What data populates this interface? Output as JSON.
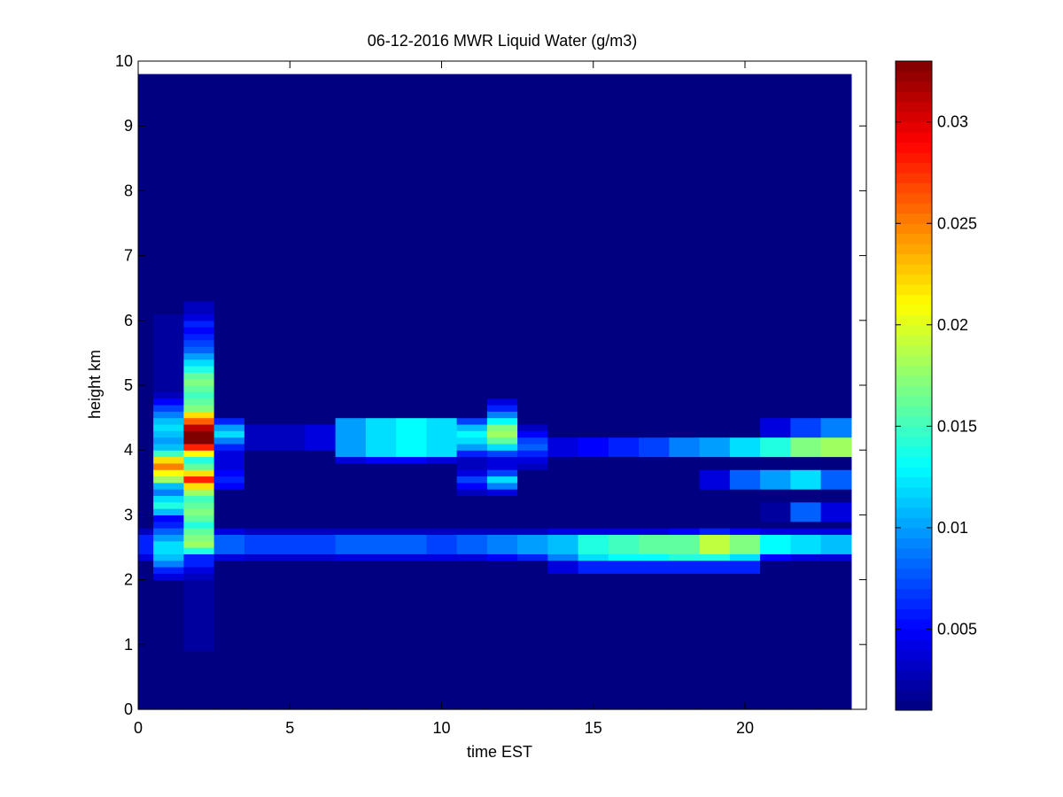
{
  "chart_data": {
    "type": "heatmap",
    "title": "06-12-2016 MWR Liquid Water (g/m3)",
    "xlabel": "time EST",
    "ylabel": "height km",
    "xlim": [
      0,
      24
    ],
    "ylim": [
      0,
      10
    ],
    "x_ticks": [
      0,
      5,
      10,
      15,
      20
    ],
    "y_ticks": [
      0,
      1,
      2,
      3,
      4,
      5,
      6,
      7,
      8,
      9,
      10
    ],
    "colorbar": {
      "colormap": "jet",
      "range": [
        0.001,
        0.033
      ],
      "ticks": [
        0.005,
        0.01,
        0.015,
        0.02,
        0.025,
        0.03
      ]
    },
    "grid": false,
    "data_extent": {
      "x": [
        0,
        23.5
      ],
      "y": [
        0,
        9.75
      ]
    },
    "background_value": 0.001,
    "time_columns": [
      0,
      1,
      2,
      3,
      4,
      5,
      6,
      7,
      8,
      9,
      10,
      11,
      12,
      13,
      14,
      15,
      16,
      17,
      18,
      19,
      20,
      21,
      22,
      23
    ],
    "column_width_hours": 1,
    "cell_height_km": 0.1,
    "features": [
      {
        "t": [
          0,
          23
        ],
        "z": [
          2.4,
          2.6
        ],
        "v": [
          0.006,
          0.0065,
          0.012,
          0.008,
          0.007,
          0.007,
          0.007,
          0.008,
          0.008,
          0.008,
          0.007,
          0.008,
          0.009,
          0.01,
          0.011,
          0.014,
          0.015,
          0.016,
          0.016,
          0.019,
          0.017,
          0.013,
          0.012,
          0.011
        ]
      },
      {
        "t": [
          0,
          23
        ],
        "z": [
          2.3,
          2.3
        ],
        "v": [
          0.004,
          0.004,
          0.006,
          0.004,
          0.0035,
          0.0035,
          0.0035,
          0.004,
          0.004,
          0.004,
          0.004,
          0.004,
          0.005,
          0.006,
          0.009,
          0.012,
          0.013,
          0.013,
          0.014,
          0.014,
          0.012,
          0.005,
          0.004,
          0.004
        ]
      },
      {
        "t": [
          0,
          23
        ],
        "z": [
          2.7,
          2.7
        ],
        "v": [
          0.003,
          0.004,
          0.006,
          0.004,
          0.003,
          0.003,
          0.003,
          0.003,
          0.003,
          0.003,
          0.003,
          0.003,
          0.003,
          0.003,
          0.004,
          0.004,
          0.004,
          0.004,
          0.005,
          0.006,
          0.005,
          0.004,
          0.004,
          0.004
        ]
      },
      {
        "t": [
          14,
          20
        ],
        "z": [
          2.1,
          2.2
        ],
        "v": [
          0.004,
          0.006,
          0.006,
          0.006,
          0.006,
          0.006,
          0.006
        ]
      },
      {
        "t": [
          1,
          1
        ],
        "z": [
          2.0,
          6.0
        ],
        "v": [
          0.004,
          0.006,
          0.009,
          0.011,
          0.012,
          0.012,
          0.01,
          0.008,
          0.006,
          0.005,
          0.011,
          0.014,
          0.012,
          0.009,
          0.011,
          0.018,
          0.021,
          0.025,
          0.022,
          0.015,
          0.011,
          0.01,
          0.011,
          0.012,
          0.011,
          0.009,
          0.007,
          0.005,
          0.003,
          0.002,
          0.002,
          0.002,
          0.002,
          0.002,
          0.002,
          0.002,
          0.002,
          0.002,
          0.002,
          0.002,
          0.002
        ]
      },
      {
        "t": [
          2,
          2
        ],
        "z": [
          0.9,
          6.2
        ],
        "v": [
          0.002,
          0.002,
          0.002,
          0.002,
          0.002,
          0.002,
          0.002,
          0.002,
          0.002,
          0.002,
          0.002,
          0.003,
          0.004,
          0.006,
          0.006,
          0.014,
          0.018,
          0.017,
          0.016,
          0.014,
          0.016,
          0.017,
          0.016,
          0.015,
          0.018,
          0.022,
          0.028,
          0.022,
          0.016,
          0.014,
          0.021,
          0.028,
          0.033,
          0.033,
          0.031,
          0.026,
          0.022,
          0.017,
          0.016,
          0.015,
          0.016,
          0.017,
          0.016,
          0.014,
          0.012,
          0.01,
          0.008,
          0.007,
          0.006,
          0.005,
          0.006,
          0.004,
          0.003,
          0.003
        ]
      },
      {
        "t": [
          3,
          3
        ],
        "z": [
          3.4,
          4.4
        ],
        "v": [
          0.005,
          0.006,
          0.005,
          0.004,
          0.004,
          0.004,
          0.006,
          0.009,
          0.012,
          0.01,
          0.006
        ]
      },
      {
        "t": [
          4,
          6
        ],
        "z": [
          4.0,
          4.3
        ],
        "v": [
          0.003,
          0.003,
          0.004
        ]
      },
      {
        "t": [
          7,
          10
        ],
        "z": [
          3.9,
          4.4
        ],
        "v": [
          0.01,
          0.012,
          0.013,
          0.012
        ]
      },
      {
        "t": [
          7,
          10
        ],
        "z": [
          3.8,
          3.8
        ],
        "v": [
          0.004,
          0.005,
          0.005,
          0.004
        ]
      },
      {
        "t": [
          11,
          11
        ],
        "z": [
          3.3,
          4.4
        ],
        "v": [
          0.003,
          0.005,
          0.007,
          0.004,
          0.003,
          0.003,
          0.006,
          0.01,
          0.012,
          0.013,
          0.011,
          0.007
        ]
      },
      {
        "t": [
          12,
          12
        ],
        "z": [
          3.3,
          4.7
        ],
        "v": [
          0.004,
          0.009,
          0.012,
          0.007,
          0.004,
          0.004,
          0.007,
          0.012,
          0.016,
          0.018,
          0.017,
          0.013,
          0.009,
          0.006,
          0.004
        ]
      },
      {
        "t": [
          13,
          13
        ],
        "z": [
          3.7,
          4.3
        ],
        "v": [
          0.003,
          0.004,
          0.006,
          0.008,
          0.007,
          0.005,
          0.003
        ]
      },
      {
        "t": [
          14,
          23
        ],
        "z": [
          3.9,
          4.1
        ],
        "v": [
          0.004,
          0.005,
          0.006,
          0.007,
          0.009,
          0.01,
          0.012,
          0.014,
          0.017,
          0.018
        ]
      },
      {
        "t": [
          19,
          23
        ],
        "z": [
          3.4,
          3.6
        ],
        "v": [
          0.004,
          0.008,
          0.01,
          0.012,
          0.008
        ]
      },
      {
        "t": [
          21,
          23
        ],
        "z": [
          4.2,
          4.4
        ],
        "v": [
          0.004,
          0.007,
          0.009
        ]
      },
      {
        "t": [
          21,
          23
        ],
        "z": [
          2.9,
          3.1
        ],
        "v": [
          0.002,
          0.008,
          0.004
        ]
      }
    ]
  }
}
